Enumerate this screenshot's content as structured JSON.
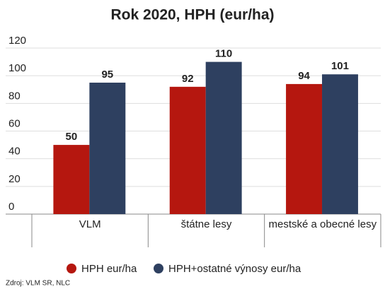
{
  "chart_data": {
    "type": "bar",
    "title": "Rok 2020, HPH (eur/ha)",
    "categories": [
      "VLM",
      "štátne lesy",
      "mestské a obecné lesy"
    ],
    "series": [
      {
        "name": "HPH eur/ha",
        "color": "#b5170f",
        "values": [
          50,
          92,
          94
        ]
      },
      {
        "name": "HPH+ostatné výnosy eur/ha",
        "color": "#2e4060",
        "values": [
          95,
          110,
          101
        ]
      }
    ],
    "ylim": [
      0,
      120
    ],
    "yticks": [
      0,
      20,
      40,
      60,
      80,
      100,
      120
    ],
    "grid": true,
    "legend": "bottom",
    "source": "Zdroj: VLM SR, NLC"
  }
}
